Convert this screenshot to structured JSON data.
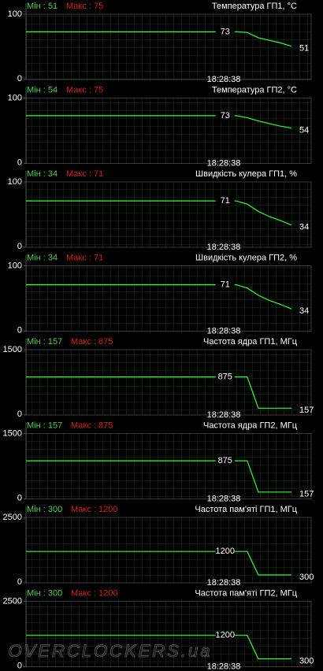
{
  "chart_data": [
    {
      "type": "line",
      "title": "Температура ГП1, °C",
      "min_label": "Мін : 51",
      "max_label": "Макс : 75",
      "time_label": "18:28:38",
      "ylim": [
        0,
        100
      ],
      "yticks": [
        0,
        100
      ],
      "color": "#33ff33",
      "values": [
        73,
        73,
        73,
        73,
        73,
        73,
        73,
        73,
        73,
        73,
        73,
        73,
        73,
        73,
        73,
        73,
        73,
        73,
        73,
        73,
        72,
        64,
        60,
        56,
        51
      ],
      "value_labels": [
        null,
        null,
        null,
        null,
        null,
        null,
        null,
        null,
        null,
        null,
        null,
        null,
        null,
        null,
        null,
        null,
        null,
        null,
        "73",
        null,
        null,
        null,
        null,
        null,
        "51"
      ]
    },
    {
      "type": "line",
      "title": "Температура ГП2, °C",
      "min_label": "Мін : 54",
      "max_label": "Макс : 75",
      "time_label": "18:28:38",
      "ylim": [
        0,
        100
      ],
      "yticks": [
        0,
        100
      ],
      "color": "#33ff33",
      "values": [
        73,
        73,
        73,
        73,
        73,
        73,
        73,
        73,
        73,
        73,
        73,
        73,
        73,
        73,
        73,
        73,
        73,
        73,
        73,
        73,
        70,
        65,
        61,
        57,
        54
      ],
      "value_labels": [
        null,
        null,
        null,
        null,
        null,
        null,
        null,
        null,
        null,
        null,
        null,
        null,
        null,
        null,
        null,
        null,
        null,
        null,
        "73",
        null,
        null,
        null,
        null,
        null,
        "54"
      ]
    },
    {
      "type": "line",
      "title": "Швидкість кулера ГП1, %",
      "min_label": "Мін : 34",
      "max_label": "Макс : 71",
      "time_label": "18:28:38",
      "ylim": [
        0,
        100
      ],
      "yticks": [
        0,
        100
      ],
      "color": "#33ff33",
      "values": [
        71,
        71,
        71,
        71,
        71,
        71,
        71,
        71,
        71,
        71,
        71,
        71,
        71,
        71,
        71,
        71,
        71,
        71,
        71,
        71,
        66,
        55,
        47,
        41,
        34
      ],
      "value_labels": [
        null,
        null,
        null,
        null,
        null,
        null,
        null,
        null,
        null,
        null,
        null,
        null,
        null,
        null,
        null,
        null,
        null,
        null,
        "71",
        null,
        null,
        null,
        null,
        null,
        "34"
      ]
    },
    {
      "type": "line",
      "title": "Швидкість кулера ГП2, %",
      "min_label": "Мін : 34",
      "max_label": "Макс : 71",
      "time_label": "18:28:38",
      "ylim": [
        0,
        100
      ],
      "yticks": [
        0,
        100
      ],
      "color": "#33ff33",
      "values": [
        71,
        71,
        71,
        71,
        71,
        71,
        71,
        71,
        71,
        71,
        71,
        71,
        71,
        71,
        71,
        71,
        71,
        71,
        71,
        71,
        66,
        55,
        47,
        41,
        34
      ],
      "value_labels": [
        null,
        null,
        null,
        null,
        null,
        null,
        null,
        null,
        null,
        null,
        null,
        null,
        null,
        null,
        null,
        null,
        null,
        null,
        "71",
        null,
        null,
        null,
        null,
        null,
        "34"
      ]
    },
    {
      "type": "line",
      "title": "Частота ядра ГП1, МГц",
      "min_label": "Мін : 157",
      "max_label": "Макс : 875",
      "time_label": "18:28:38",
      "ylim": [
        0,
        1500
      ],
      "yticks": [
        0,
        1500
      ],
      "color": "#33ff33",
      "values": [
        875,
        875,
        875,
        875,
        875,
        875,
        875,
        875,
        875,
        875,
        875,
        875,
        875,
        875,
        875,
        875,
        875,
        875,
        875,
        875,
        875,
        157,
        157,
        157,
        157
      ],
      "value_labels": [
        null,
        null,
        null,
        null,
        null,
        null,
        null,
        null,
        null,
        null,
        null,
        null,
        null,
        null,
        null,
        null,
        null,
        null,
        "875",
        null,
        null,
        null,
        null,
        null,
        "157"
      ]
    },
    {
      "type": "line",
      "title": "Частота ядра ГП2, МГц",
      "min_label": "Мін : 157",
      "max_label": "Макс : 875",
      "time_label": "18:28:38",
      "ylim": [
        0,
        1500
      ],
      "yticks": [
        0,
        1500
      ],
      "color": "#33ff33",
      "values": [
        875,
        875,
        875,
        875,
        875,
        875,
        875,
        875,
        875,
        875,
        875,
        875,
        875,
        875,
        875,
        875,
        875,
        875,
        875,
        875,
        875,
        157,
        157,
        157,
        157
      ],
      "value_labels": [
        null,
        null,
        null,
        null,
        null,
        null,
        null,
        null,
        null,
        null,
        null,
        null,
        null,
        null,
        null,
        null,
        null,
        null,
        "875",
        null,
        null,
        null,
        null,
        null,
        "157"
      ]
    },
    {
      "type": "line",
      "title": "Частота пам'яті ГП1, МГц",
      "min_label": "Мін : 300",
      "max_label": "Макс : 1200",
      "time_label": "18:28:38",
      "ylim": [
        0,
        2500
      ],
      "yticks": [
        0,
        2500
      ],
      "color": "#33ff33",
      "values": [
        1200,
        1200,
        1200,
        1200,
        1200,
        1200,
        1200,
        1200,
        1200,
        1200,
        1200,
        1200,
        1200,
        1200,
        1200,
        1200,
        1200,
        1200,
        1200,
        1200,
        1200,
        300,
        300,
        300,
        300
      ],
      "value_labels": [
        null,
        null,
        null,
        null,
        null,
        null,
        null,
        null,
        null,
        null,
        null,
        null,
        null,
        null,
        null,
        null,
        null,
        null,
        "1200",
        null,
        null,
        null,
        null,
        null,
        "300"
      ]
    },
    {
      "type": "line",
      "title": "Частота пам'яті ГП2, МГц",
      "min_label": "Мін : 300",
      "max_label": "Макс : 1200",
      "time_label": "18:28:38",
      "ylim": [
        0,
        2500
      ],
      "yticks": [
        0,
        2500
      ],
      "color": "#33ff33",
      "values": [
        1200,
        1200,
        1200,
        1200,
        1200,
        1200,
        1200,
        1200,
        1200,
        1200,
        1200,
        1200,
        1200,
        1200,
        1200,
        1200,
        1200,
        1200,
        1200,
        1200,
        1200,
        300,
        300,
        300,
        300
      ],
      "value_labels": [
        null,
        null,
        null,
        null,
        null,
        null,
        null,
        null,
        null,
        null,
        null,
        null,
        null,
        null,
        null,
        null,
        null,
        null,
        "1200",
        null,
        null,
        null,
        null,
        null,
        "300"
      ]
    }
  ],
  "watermark": "OVERCLOCKERS.ua"
}
